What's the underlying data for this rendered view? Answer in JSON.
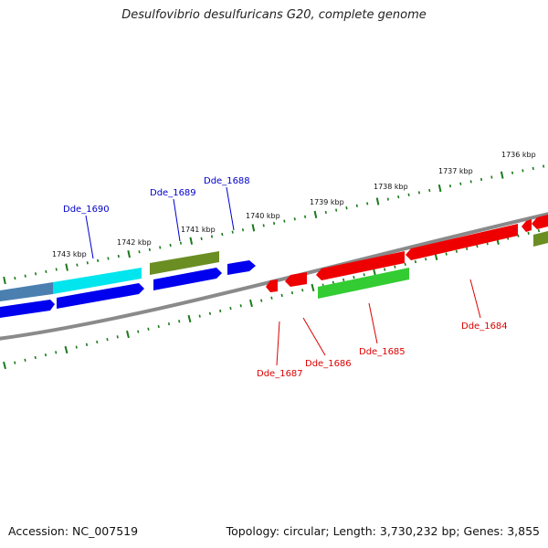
{
  "title": "Desulfovibrio desulfuricans G20, complete genome",
  "footer": {
    "accession": "Accession: NC_007519",
    "summary": "Topology: circular; Length: 3,730,232 bp; Genes: 3,855"
  },
  "colors": {
    "backbone": "#888888",
    "tick": "#1a7a1a",
    "forward_label": "#0000cc",
    "reverse_label": "#dd0000"
  },
  "kbp_labels": [
    "1736 kbp",
    "1737 kbp",
    "1738 kbp",
    "1739 kbp",
    "1740 kbp",
    "1741 kbp",
    "1742 kbp",
    "1743 kbp"
  ],
  "forward_labels": [
    "Dde_1690",
    "Dde_1689",
    "Dde_1688"
  ],
  "reverse_labels": [
    "Dde_1687",
    "Dde_1686",
    "Dde_1685",
    "Dde_1684"
  ]
}
